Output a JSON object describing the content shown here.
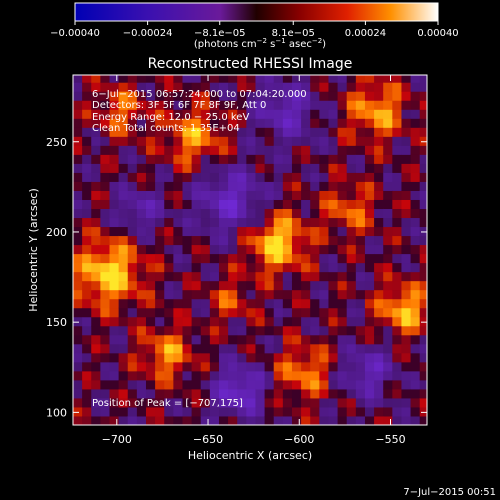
{
  "chart_data": {
    "type": "heatmap",
    "title": "Reconstructed RHESSI Image",
    "xlabel": "Heliocentric X (arcsec)",
    "ylabel": "Heliocentric Y (arcsec)",
    "xlim": [
      -724,
      -530
    ],
    "ylim": [
      93,
      287
    ],
    "x_ticks": [
      -700,
      -650,
      -600,
      -550
    ],
    "x_tick_labels": [
      "−700",
      "−650",
      "−600",
      "−550"
    ],
    "y_ticks": [
      100,
      150,
      200,
      250
    ],
    "y_tick_labels": [
      "100",
      "150",
      "200",
      "250"
    ],
    "colorbar": {
      "range": [
        -0.0004,
        0.0004
      ],
      "ticks": [
        -0.0004,
        -0.00024,
        -8.1e-05,
        8.1e-05,
        0.00024,
        0.0004
      ],
      "tick_labels": [
        "−0.00040",
        "−0.00024",
        "−8.1e−05",
        "8.1e−05",
        "0.00024",
        "0.00040"
      ],
      "units": [
        "(photons cm",
        "−2",
        " s",
        "−1",
        " asec",
        "−2",
        ")"
      ]
    },
    "annotations": [
      "6−Jul−2015 06:57:24.000 to 07:04:20.000",
      "Detectors: 3F 5F 6F 7F 8F 9F, Att 0",
      "Energy Range: 12.0 − 25.0 keV",
      "Clean     Total counts: 1.35E+04"
    ],
    "peak_label": "Position of Peak = [−707,175]",
    "peak_position": [
      -707,
      175
    ],
    "grid": false
  },
  "timestamp": "7−Jul−2015 00:51"
}
